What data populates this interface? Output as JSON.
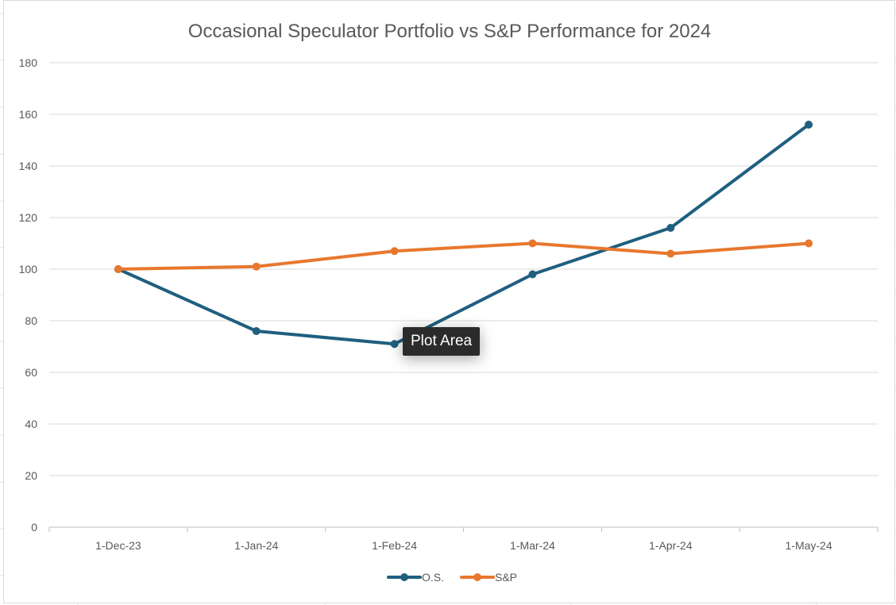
{
  "chart_data": {
    "type": "line",
    "title": "Occasional Speculator Portfolio vs S&P Performance for 2024",
    "categories": [
      "1-Dec-23",
      "1-Jan-24",
      "1-Feb-24",
      "1-Mar-24",
      "1-Apr-24",
      "1-May-24"
    ],
    "series": [
      {
        "name": "O.S.",
        "color": "#1f5f7f",
        "values": [
          100,
          76,
          71,
          98,
          116,
          156
        ]
      },
      {
        "name": "S&P",
        "color": "#e8772e",
        "values": [
          100,
          101,
          107,
          110,
          106,
          110
        ]
      }
    ],
    "ylim": [
      0,
      180
    ],
    "yticks": [
      0,
      20,
      40,
      60,
      80,
      100,
      120,
      140,
      160,
      180
    ],
    "grid": true,
    "legend": "bottom-center"
  },
  "tooltip": {
    "text": "Plot Area"
  },
  "colors": {
    "gridline": "#d9d9d9",
    "text": "#595959"
  }
}
